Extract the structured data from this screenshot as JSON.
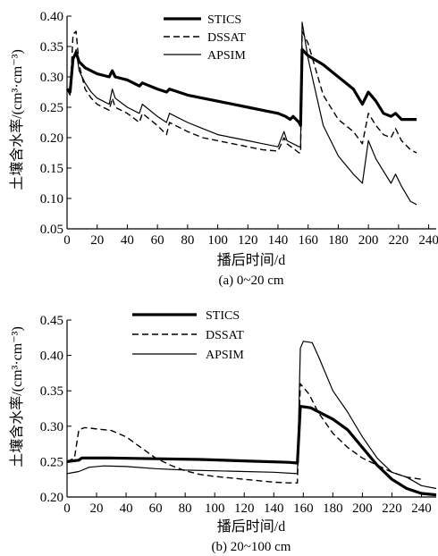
{
  "chart_data": [
    {
      "type": "line",
      "caption": "(a) 0~20 cm",
      "xlabel": "播后时间/d",
      "ylabel": "土壤含水率/(cm³·cm⁻³)",
      "xlim": [
        0,
        245
      ],
      "ylim": [
        0.05,
        0.4
      ],
      "xticks": [
        0,
        20,
        40,
        60,
        80,
        100,
        120,
        140,
        160,
        180,
        200,
        220,
        240
      ],
      "yticks": [
        0.05,
        0.1,
        0.15,
        0.2,
        0.25,
        0.3,
        0.35,
        0.4
      ],
      "legend_position": "top-center",
      "series": [
        {
          "name": "STICS",
          "style": "thick-solid",
          "points": [
            [
              0,
              0.28
            ],
            [
              2,
              0.275
            ],
            [
              4,
              0.33
            ],
            [
              6,
              0.34
            ],
            [
              8,
              0.325
            ],
            [
              12,
              0.315
            ],
            [
              20,
              0.305
            ],
            [
              28,
              0.3
            ],
            [
              30,
              0.31
            ],
            [
              32,
              0.3
            ],
            [
              40,
              0.295
            ],
            [
              48,
              0.285
            ],
            [
              50,
              0.29
            ],
            [
              60,
              0.28
            ],
            [
              66,
              0.275
            ],
            [
              68,
              0.28
            ],
            [
              80,
              0.27
            ],
            [
              90,
              0.265
            ],
            [
              100,
              0.26
            ],
            [
              110,
              0.255
            ],
            [
              120,
              0.25
            ],
            [
              130,
              0.245
            ],
            [
              140,
              0.24
            ],
            [
              145,
              0.235
            ],
            [
              148,
              0.23
            ],
            [
              150,
              0.235
            ],
            [
              154,
              0.225
            ],
            [
              155,
              0.22
            ],
            [
              156,
              0.345
            ],
            [
              160,
              0.335
            ],
            [
              170,
              0.32
            ],
            [
              180,
              0.3
            ],
            [
              190,
              0.28
            ],
            [
              196,
              0.255
            ],
            [
              200,
              0.275
            ],
            [
              205,
              0.26
            ],
            [
              210,
              0.24
            ],
            [
              215,
              0.235
            ],
            [
              218,
              0.24
            ],
            [
              222,
              0.23
            ],
            [
              232,
              0.23
            ]
          ]
        },
        {
          "name": "DSSAT",
          "style": "dashed",
          "points": [
            [
              0,
              0.28
            ],
            [
              2,
              0.27
            ],
            [
              4,
              0.37
            ],
            [
              6,
              0.375
            ],
            [
              8,
              0.32
            ],
            [
              12,
              0.28
            ],
            [
              16,
              0.265
            ],
            [
              20,
              0.255
            ],
            [
              24,
              0.25
            ],
            [
              28,
              0.245
            ],
            [
              30,
              0.265
            ],
            [
              32,
              0.25
            ],
            [
              40,
              0.24
            ],
            [
              48,
              0.225
            ],
            [
              50,
              0.24
            ],
            [
              60,
              0.22
            ],
            [
              66,
              0.205
            ],
            [
              68,
              0.225
            ],
            [
              80,
              0.21
            ],
            [
              90,
              0.2
            ],
            [
              100,
              0.195
            ],
            [
              110,
              0.19
            ],
            [
              120,
              0.185
            ],
            [
              130,
              0.18
            ],
            [
              140,
              0.178
            ],
            [
              144,
              0.2
            ],
            [
              146,
              0.19
            ],
            [
              154,
              0.175
            ],
            [
              155,
              0.175
            ],
            [
              156,
              0.375
            ],
            [
              160,
              0.355
            ],
            [
              170,
              0.27
            ],
            [
              180,
              0.23
            ],
            [
              190,
              0.21
            ],
            [
              196,
              0.19
            ],
            [
              200,
              0.24
            ],
            [
              205,
              0.22
            ],
            [
              210,
              0.205
            ],
            [
              215,
              0.2
            ],
            [
              218,
              0.215
            ],
            [
              222,
              0.195
            ],
            [
              228,
              0.18
            ],
            [
              232,
              0.175
            ]
          ]
        },
        {
          "name": "APSIM",
          "style": "thin-solid",
          "points": [
            [
              0,
              0.28
            ],
            [
              2,
              0.27
            ],
            [
              4,
              0.33
            ],
            [
              6,
              0.345
            ],
            [
              8,
              0.31
            ],
            [
              12,
              0.29
            ],
            [
              16,
              0.275
            ],
            [
              20,
              0.265
            ],
            [
              24,
              0.26
            ],
            [
              28,
              0.255
            ],
            [
              30,
              0.28
            ],
            [
              32,
              0.265
            ],
            [
              40,
              0.25
            ],
            [
              48,
              0.24
            ],
            [
              50,
              0.255
            ],
            [
              60,
              0.235
            ],
            [
              66,
              0.225
            ],
            [
              68,
              0.24
            ],
            [
              80,
              0.225
            ],
            [
              90,
              0.215
            ],
            [
              100,
              0.205
            ],
            [
              110,
              0.2
            ],
            [
              120,
              0.195
            ],
            [
              130,
              0.19
            ],
            [
              140,
              0.185
            ],
            [
              144,
              0.21
            ],
            [
              146,
              0.195
            ],
            [
              154,
              0.185
            ],
            [
              155,
              0.185
            ],
            [
              156,
              0.39
            ],
            [
              160,
              0.33
            ],
            [
              170,
              0.22
            ],
            [
              180,
              0.17
            ],
            [
              190,
              0.14
            ],
            [
              196,
              0.125
            ],
            [
              200,
              0.195
            ],
            [
              205,
              0.165
            ],
            [
              210,
              0.145
            ],
            [
              215,
              0.125
            ],
            [
              218,
              0.14
            ],
            [
              222,
              0.12
            ],
            [
              228,
              0.095
            ],
            [
              232,
              0.09
            ]
          ]
        }
      ]
    },
    {
      "type": "line",
      "caption": "(b) 20~100 cm",
      "xlabel": "播后时间/d",
      "ylabel": "土壤含水率/(cm³·cm⁻³)",
      "xlim": [
        0,
        250
      ],
      "ylim": [
        0.2,
        0.45
      ],
      "xticks": [
        0,
        20,
        40,
        60,
        80,
        100,
        120,
        140,
        160,
        180,
        200,
        220,
        240
      ],
      "yticks": [
        0.2,
        0.25,
        0.3,
        0.35,
        0.4,
        0.45
      ],
      "legend_position": "top-center",
      "series": [
        {
          "name": "STICS",
          "style": "thick-solid",
          "points": [
            [
              0,
              0.25
            ],
            [
              8,
              0.252
            ],
            [
              10,
              0.255
            ],
            [
              30,
              0.255
            ],
            [
              60,
              0.254
            ],
            [
              90,
              0.253
            ],
            [
              120,
              0.251
            ],
            [
              150,
              0.249
            ],
            [
              156,
              0.248
            ],
            [
              158,
              0.328
            ],
            [
              165,
              0.326
            ],
            [
              180,
              0.31
            ],
            [
              190,
              0.295
            ],
            [
              200,
              0.27
            ],
            [
              210,
              0.245
            ],
            [
              220,
              0.225
            ],
            [
              230,
              0.212
            ],
            [
              240,
              0.205
            ],
            [
              250,
              0.203
            ]
          ]
        },
        {
          "name": "DSSAT",
          "style": "dashed",
          "points": [
            [
              0,
              0.25
            ],
            [
              5,
              0.255
            ],
            [
              8,
              0.295
            ],
            [
              12,
              0.298
            ],
            [
              30,
              0.294
            ],
            [
              40,
              0.285
            ],
            [
              50,
              0.27
            ],
            [
              60,
              0.255
            ],
            [
              70,
              0.245
            ],
            [
              80,
              0.237
            ],
            [
              90,
              0.232
            ],
            [
              100,
              0.229
            ],
            [
              110,
              0.227
            ],
            [
              120,
              0.225
            ],
            [
              130,
              0.223
            ],
            [
              140,
              0.221
            ],
            [
              150,
              0.22
            ],
            [
              156,
              0.22
            ],
            [
              158,
              0.36
            ],
            [
              164,
              0.345
            ],
            [
              170,
              0.32
            ],
            [
              180,
              0.29
            ],
            [
              190,
              0.27
            ],
            [
              200,
              0.255
            ],
            [
              210,
              0.245
            ],
            [
              220,
              0.235
            ],
            [
              230,
              0.228
            ],
            [
              240,
              0.225
            ]
          ]
        },
        {
          "name": "APSIM",
          "style": "thin-solid",
          "points": [
            [
              0,
              0.233
            ],
            [
              8,
              0.236
            ],
            [
              15,
              0.242
            ],
            [
              25,
              0.244
            ],
            [
              40,
              0.243
            ],
            [
              60,
              0.24
            ],
            [
              80,
              0.238
            ],
            [
              100,
              0.237
            ],
            [
              120,
              0.236
            ],
            [
              140,
              0.235
            ],
            [
              156,
              0.233
            ],
            [
              158,
              0.41
            ],
            [
              160,
              0.42
            ],
            [
              166,
              0.418
            ],
            [
              170,
              0.4
            ],
            [
              180,
              0.35
            ],
            [
              190,
              0.32
            ],
            [
              200,
              0.285
            ],
            [
              210,
              0.255
            ],
            [
              220,
              0.235
            ],
            [
              230,
              0.228
            ],
            [
              240,
              0.216
            ],
            [
              250,
              0.212
            ]
          ]
        }
      ]
    }
  ]
}
